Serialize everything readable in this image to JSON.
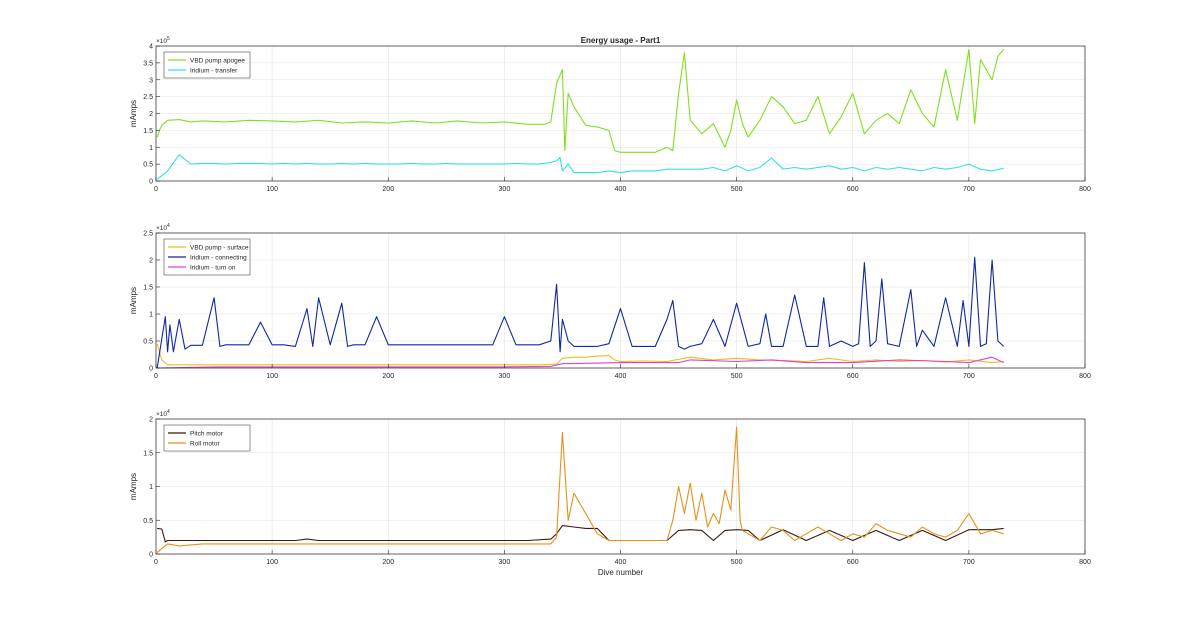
{
  "chart_data": [
    {
      "type": "line",
      "title": "Energy usage - Part1",
      "xlabel": "",
      "ylabel": "mAmps",
      "xlim": [
        0,
        800
      ],
      "ylim": [
        0,
        400000
      ],
      "xticks": [
        0,
        100,
        200,
        300,
        400,
        500,
        600,
        700,
        800
      ],
      "yticks": [
        0,
        0.5,
        1,
        1.5,
        2,
        2.5,
        3,
        3.5,
        4
      ],
      "ytick_labels": [
        "0",
        "0.5",
        "1",
        "1.5",
        "2",
        "2.5",
        "3",
        "3.5",
        "4"
      ],
      "y_multiplier": "×10",
      "y_exponent": "5",
      "grid": true,
      "legend_position": "top-left",
      "series": [
        {
          "name": "VBD pump apogee",
          "color": "#7fe01c",
          "x": [
            1,
            3,
            5,
            10,
            20,
            30,
            40,
            60,
            80,
            100,
            120,
            140,
            160,
            180,
            200,
            220,
            240,
            260,
            280,
            300,
            320,
            335,
            340,
            345,
            350,
            352,
            355,
            360,
            370,
            380,
            390,
            395,
            400,
            410,
            420,
            430,
            440,
            445,
            450,
            455,
            460,
            470,
            480,
            490,
            495,
            500,
            505,
            510,
            520,
            530,
            540,
            550,
            560,
            570,
            580,
            590,
            600,
            610,
            620,
            630,
            640,
            650,
            660,
            670,
            680,
            690,
            700,
            705,
            710,
            715,
            720,
            725,
            730
          ],
          "y": [
            130000,
            150000,
            165000,
            180000,
            182000,
            175000,
            178000,
            175000,
            180000,
            178000,
            175000,
            180000,
            172000,
            175000,
            172000,
            178000,
            172000,
            178000,
            172000,
            175000,
            168000,
            168000,
            175000,
            290000,
            330000,
            90000,
            260000,
            220000,
            165000,
            160000,
            150000,
            90000,
            85000,
            85000,
            85000,
            85000,
            100000,
            90000,
            260000,
            380000,
            180000,
            140000,
            170000,
            100000,
            150000,
            240000,
            170000,
            130000,
            180000,
            250000,
            220000,
            170000,
            180000,
            250000,
            140000,
            190000,
            260000,
            140000,
            180000,
            200000,
            170000,
            270000,
            200000,
            160000,
            330000,
            180000,
            390000,
            170000,
            360000,
            330000,
            300000,
            370000,
            390000
          ]
        },
        {
          "name": "Iridium - transfer",
          "color": "#33e0e8",
          "x": [
            1,
            10,
            20,
            30,
            40,
            50,
            60,
            70,
            80,
            90,
            100,
            110,
            120,
            130,
            140,
            150,
            160,
            170,
            180,
            190,
            200,
            210,
            220,
            230,
            240,
            250,
            260,
            270,
            280,
            290,
            300,
            310,
            320,
            330,
            340,
            345,
            348,
            350,
            355,
            360,
            370,
            380,
            390,
            400,
            410,
            420,
            430,
            440,
            450,
            460,
            470,
            480,
            490,
            500,
            510,
            520,
            530,
            540,
            550,
            560,
            570,
            580,
            590,
            600,
            610,
            620,
            630,
            640,
            650,
            660,
            670,
            680,
            690,
            700,
            710,
            720,
            730
          ],
          "y": [
            5000,
            30000,
            78000,
            50000,
            52000,
            52000,
            50000,
            52000,
            52000,
            52000,
            50000,
            52000,
            50000,
            52000,
            50000,
            50000,
            52000,
            50000,
            52000,
            50000,
            50000,
            50000,
            52000,
            50000,
            50000,
            52000,
            50000,
            50000,
            50000,
            50000,
            50000,
            52000,
            50000,
            50000,
            55000,
            60000,
            70000,
            30000,
            50000,
            25000,
            25000,
            25000,
            30000,
            25000,
            30000,
            30000,
            30000,
            35000,
            35000,
            35000,
            35000,
            40000,
            30000,
            45000,
            30000,
            40000,
            68000,
            35000,
            40000,
            35000,
            40000,
            45000,
            35000,
            40000,
            30000,
            40000,
            35000,
            40000,
            35000,
            30000,
            40000,
            35000,
            40000,
            50000,
            35000,
            30000,
            38000
          ]
        }
      ]
    },
    {
      "type": "line",
      "title": "",
      "xlabel": "",
      "ylabel": "mAmps",
      "xlim": [
        0,
        800
      ],
      "ylim": [
        0,
        25000
      ],
      "xticks": [
        0,
        100,
        200,
        300,
        400,
        500,
        600,
        700,
        800
      ],
      "yticks": [
        0,
        0.5,
        1,
        1.5,
        2,
        2.5
      ],
      "ytick_labels": [
        "0",
        "0.5",
        "1",
        "1.5",
        "2",
        "2.5"
      ],
      "y_multiplier": "×10",
      "y_exponent": "4",
      "grid": true,
      "legend_position": "top-left",
      "series": [
        {
          "name": "VBD pump - surface",
          "color": "#e8c21a",
          "x": [
            1,
            5,
            10,
            50,
            100,
            150,
            200,
            250,
            300,
            330,
            345,
            350,
            360,
            370,
            380,
            390,
            395,
            400,
            420,
            440,
            460,
            480,
            500,
            520,
            540,
            560,
            580,
            600,
            620,
            640,
            660,
            680,
            700,
            720,
            730
          ],
          "y": [
            4500,
            1500,
            600,
            600,
            600,
            600,
            600,
            600,
            600,
            600,
            700,
            1800,
            2000,
            2000,
            2200,
            2300,
            1500,
            1200,
            1300,
            1200,
            2000,
            1500,
            1800,
            1500,
            1400,
            1200,
            1800,
            1200,
            1500,
            1200,
            1400,
            1100,
            1500,
            1000,
            1200
          ]
        },
        {
          "name": "Iridium - connecting",
          "color": "#1028a0",
          "x": [
            1,
            8,
            10,
            12,
            15,
            20,
            25,
            30,
            40,
            50,
            55,
            60,
            70,
            80,
            90,
            100,
            110,
            120,
            130,
            135,
            140,
            150,
            160,
            165,
            170,
            180,
            190,
            200,
            210,
            220,
            230,
            240,
            250,
            260,
            270,
            280,
            290,
            300,
            310,
            320,
            330,
            340,
            345,
            348,
            350,
            355,
            360,
            370,
            380,
            390,
            400,
            410,
            420,
            430,
            440,
            445,
            450,
            455,
            460,
            470,
            480,
            490,
            500,
            510,
            520,
            525,
            530,
            540,
            550,
            560,
            570,
            575,
            580,
            590,
            600,
            605,
            610,
            615,
            620,
            625,
            630,
            640,
            650,
            655,
            660,
            670,
            680,
            690,
            695,
            700,
            705,
            710,
            715,
            720,
            725,
            730
          ],
          "y": [
            0,
            9500,
            3000,
            8000,
            3000,
            9000,
            3500,
            4200,
            4200,
            13000,
            4000,
            4300,
            4300,
            4300,
            8500,
            4300,
            4300,
            4000,
            11000,
            4000,
            13000,
            4300,
            12000,
            4000,
            4300,
            4300,
            9500,
            4300,
            4300,
            4300,
            4300,
            4300,
            4300,
            4300,
            4300,
            4300,
            4300,
            9500,
            4300,
            4300,
            4300,
            5000,
            15500,
            3000,
            9000,
            5000,
            4000,
            4000,
            4000,
            4500,
            11000,
            4000,
            4000,
            4000,
            9000,
            12500,
            4000,
            3500,
            4000,
            4500,
            9000,
            4000,
            12000,
            4000,
            4500,
            10000,
            4000,
            4000,
            13500,
            4000,
            4000,
            13000,
            4000,
            5000,
            4000,
            4500,
            19500,
            4000,
            5000,
            16500,
            4500,
            4000,
            14500,
            4000,
            7000,
            4000,
            13000,
            4000,
            12500,
            4000,
            20500,
            4000,
            4500,
            20000,
            5000,
            4000
          ]
        },
        {
          "name": "Iridium - turn on",
          "color": "#e040d0",
          "x": [
            1,
            50,
            100,
            150,
            200,
            250,
            300,
            340,
            350,
            380,
            400,
            450,
            460,
            500,
            530,
            560,
            600,
            640,
            680,
            700,
            720,
            730
          ],
          "y": [
            0,
            200,
            200,
            200,
            200,
            200,
            200,
            300,
            800,
            900,
            1000,
            1000,
            1500,
            1200,
            1500,
            1000,
            1000,
            1500,
            1200,
            1000,
            2000,
            1000
          ]
        }
      ]
    },
    {
      "type": "line",
      "title": "",
      "xlabel": "Dive number",
      "ylabel": "mAmps",
      "xlim": [
        0,
        800
      ],
      "ylim": [
        0,
        20000
      ],
      "xticks": [
        0,
        100,
        200,
        300,
        400,
        500,
        600,
        700,
        800
      ],
      "yticks": [
        0,
        0.5,
        1,
        1.5,
        2
      ],
      "ytick_labels": [
        "0",
        "0.5",
        "1",
        "1.5",
        "2"
      ],
      "y_multiplier": "×10",
      "y_exponent": "4",
      "grid": true,
      "legend_position": "top-left",
      "series": [
        {
          "name": "Pitch motor",
          "color": "#3a1a10",
          "x": [
            1,
            5,
            8,
            10,
            20,
            40,
            60,
            80,
            100,
            120,
            130,
            140,
            160,
            180,
            200,
            220,
            240,
            260,
            280,
            300,
            320,
            340,
            345,
            350,
            360,
            370,
            380,
            390,
            400,
            420,
            440,
            450,
            460,
            470,
            480,
            490,
            500,
            510,
            520,
            540,
            560,
            580,
            600,
            620,
            640,
            660,
            680,
            700,
            720,
            730
          ],
          "y": [
            3800,
            3700,
            1800,
            2000,
            2000,
            2000,
            2000,
            2000,
            2000,
            2000,
            2200,
            2000,
            2000,
            2000,
            2000,
            2000,
            2000,
            2000,
            2000,
            2000,
            2000,
            2200,
            3000,
            4200,
            4000,
            3800,
            3800,
            2000,
            2000,
            2000,
            2000,
            3500,
            3600,
            3500,
            2000,
            3500,
            3600,
            3500,
            2000,
            3600,
            2000,
            3500,
            2000,
            3500,
            2000,
            3500,
            2000,
            3600,
            3600,
            3800
          ]
        },
        {
          "name": "Roll motor",
          "color": "#e8901a",
          "x": [
            1,
            5,
            10,
            20,
            40,
            60,
            80,
            100,
            120,
            140,
            160,
            180,
            200,
            220,
            240,
            260,
            280,
            300,
            320,
            340,
            345,
            350,
            355,
            360,
            370,
            380,
            390,
            400,
            420,
            440,
            445,
            450,
            455,
            460,
            465,
            470,
            475,
            480,
            485,
            490,
            495,
            500,
            503,
            505,
            510,
            520,
            530,
            540,
            550,
            560,
            570,
            580,
            590,
            600,
            610,
            620,
            630,
            640,
            650,
            660,
            670,
            680,
            690,
            700,
            710,
            720,
            730
          ],
          "y": [
            200,
            800,
            1500,
            1200,
            1500,
            1500,
            1500,
            1500,
            1500,
            1500,
            1500,
            1500,
            1500,
            1500,
            1500,
            1500,
            1500,
            1500,
            1500,
            1500,
            2500,
            18000,
            5000,
            9000,
            6000,
            3000,
            2000,
            2000,
            2000,
            2000,
            5000,
            10000,
            6000,
            10500,
            5000,
            9000,
            4000,
            6000,
            4500,
            9500,
            6500,
            18800,
            5000,
            3500,
            3000,
            2000,
            4000,
            3500,
            2000,
            3000,
            4000,
            3000,
            2000,
            3000,
            2500,
            4500,
            3500,
            3000,
            2500,
            4000,
            3000,
            2500,
            3500,
            6000,
            3000,
            3500,
            3000
          ]
        }
      ]
    }
  ]
}
